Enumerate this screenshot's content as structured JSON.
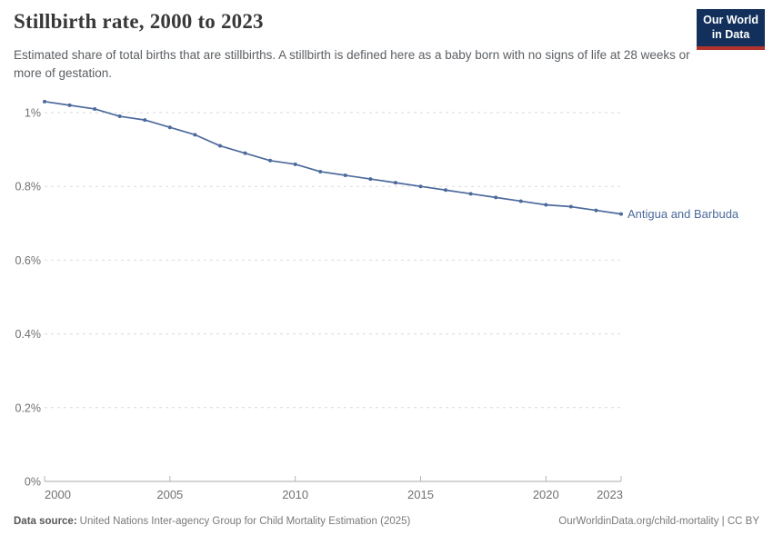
{
  "header": {
    "title": "Stillbirth rate, 2000 to 2023"
  },
  "subtitle": "Estimated share of total births that are stillbirths. A stillbirth is defined here as a baby born with no signs of life at 28 weeks or more of gestation.",
  "logo": {
    "line1": "Our World",
    "line2": "in Data",
    "bg_color": "#12305b",
    "accent_color": "#b0342c"
  },
  "chart_data": {
    "type": "line",
    "title": "Stillbirth rate, 2000 to 2023",
    "x": [
      2000,
      2001,
      2002,
      2003,
      2004,
      2005,
      2006,
      2007,
      2008,
      2009,
      2010,
      2011,
      2012,
      2013,
      2014,
      2015,
      2016,
      2017,
      2018,
      2019,
      2020,
      2021,
      2022,
      2023
    ],
    "series": [
      {
        "name": "Antigua and Barbuda",
        "color": "#4C6A9C",
        "values": [
          1.03,
          1.02,
          1.01,
          0.99,
          0.98,
          0.96,
          0.94,
          0.91,
          0.89,
          0.87,
          0.86,
          0.84,
          0.83,
          0.82,
          0.81,
          0.8,
          0.79,
          0.78,
          0.77,
          0.76,
          0.75,
          0.745,
          0.735,
          0.725
        ]
      }
    ],
    "unit": "%",
    "ylim": [
      0,
      1.05
    ],
    "yticks": [
      {
        "value": 0,
        "label": "0%"
      },
      {
        "value": 0.2,
        "label": "0.2%"
      },
      {
        "value": 0.4,
        "label": "0.4%"
      },
      {
        "value": 0.6,
        "label": "0.6%"
      },
      {
        "value": 0.8,
        "label": "0.8%"
      },
      {
        "value": 1,
        "label": "1%"
      }
    ],
    "xticks": [
      2000,
      2005,
      2010,
      2015,
      2020,
      2023
    ],
    "grid": "horizontal-dashed",
    "legend_position": "end-of-line"
  },
  "footer": {
    "datasource_label": "Data source:",
    "datasource": "United Nations Inter-agency Group for Child Mortality Estimation (2025)",
    "link": "OurWorldinData.org/child-mortality | CC BY"
  }
}
